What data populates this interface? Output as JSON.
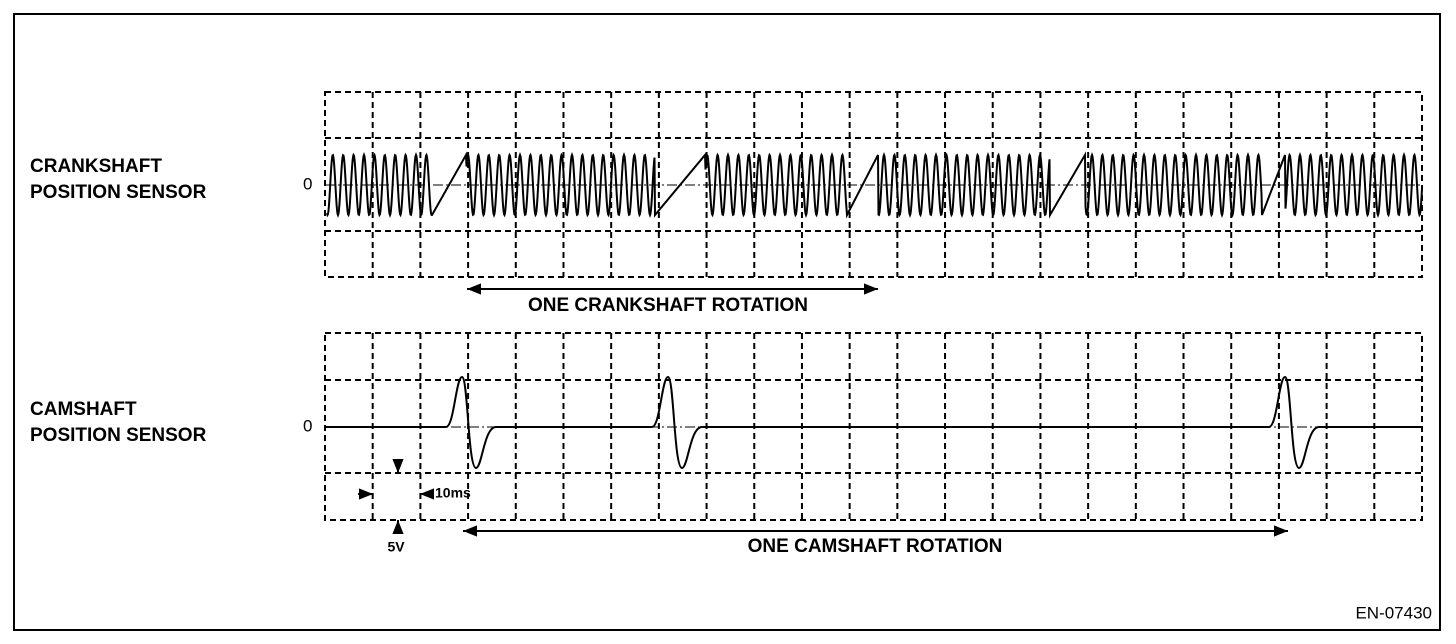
{
  "crankshaft": {
    "label_line1": "CRANKSHAFT",
    "label_line2": "POSITION SENSOR",
    "zero_label": "0",
    "rotation_label": "ONE CRANKSHAFT ROTATION"
  },
  "camshaft": {
    "label_line1": "CAMSHAFT",
    "label_line2": "POSITION SENSOR",
    "zero_label": "0",
    "rotation_label": "ONE CAMSHAFT ROTATION",
    "time_scale": "10ms",
    "voltage_scale": "5V"
  },
  "figure_id": "EN-07430"
}
